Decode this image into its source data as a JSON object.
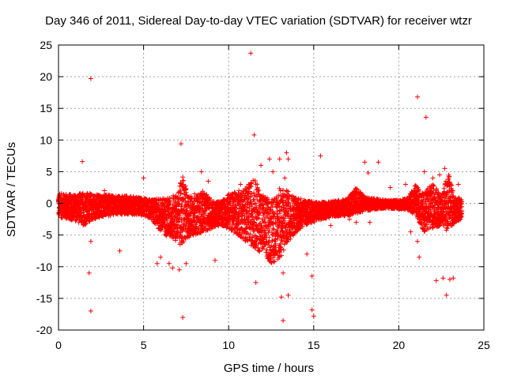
{
  "chart_data": {
    "type": "scatter",
    "title": "Day 346 of 2011, Sidereal Day-to-day VTEC variation (SDTVAR) for receiver wtzr",
    "xlabel": "GPS time / hours",
    "ylabel": "SDTVAR / TECUs",
    "xlim": [
      0,
      25
    ],
    "ylim": [
      -20,
      25
    ],
    "xticks": [
      0,
      5,
      10,
      15,
      20,
      25
    ],
    "yticks": [
      -20,
      -15,
      -10,
      -5,
      0,
      5,
      10,
      15,
      20,
      25
    ],
    "grid": true,
    "marker": "+",
    "color": "#ff0000",
    "series": [
      {
        "name": "SDTVAR",
        "band": [
          [
            0.0,
            -2.2,
            1.6
          ],
          [
            0.5,
            -2.5,
            1.5
          ],
          [
            1.0,
            -2.8,
            1.4
          ],
          [
            1.5,
            -3.5,
            1.8
          ],
          [
            2.0,
            -2.6,
            1.5
          ],
          [
            2.5,
            -2.2,
            1.4
          ],
          [
            3.0,
            -2.0,
            1.3
          ],
          [
            3.5,
            -1.8,
            1.2
          ],
          [
            4.0,
            -1.7,
            1.2
          ],
          [
            4.5,
            -1.8,
            1.1
          ],
          [
            5.0,
            -2.0,
            0.8
          ],
          [
            5.5,
            -2.6,
            0.6
          ],
          [
            6.0,
            -4.5,
            0.8
          ],
          [
            6.5,
            -5.5,
            1.0
          ],
          [
            7.0,
            -6.0,
            1.5
          ],
          [
            7.3,
            -7.0,
            4.5
          ],
          [
            7.6,
            -5.5,
            1.5
          ],
          [
            8.0,
            -5.0,
            1.0
          ],
          [
            8.5,
            -4.5,
            2.0
          ],
          [
            9.0,
            -4.0,
            0.5
          ],
          [
            9.5,
            -3.5,
            0.3
          ],
          [
            10.0,
            -4.0,
            1.5
          ],
          [
            10.5,
            -5.0,
            2.0
          ],
          [
            11.0,
            -6.0,
            2.5
          ],
          [
            11.5,
            -7.0,
            4.0
          ],
          [
            12.0,
            -8.0,
            1.5
          ],
          [
            12.5,
            -9.5,
            0.5
          ],
          [
            13.0,
            -9.0,
            2.5
          ],
          [
            13.5,
            -6.0,
            2.0
          ],
          [
            14.0,
            -4.5,
            1.0
          ],
          [
            14.5,
            -3.5,
            0.5
          ],
          [
            15.0,
            -3.0,
            0.3
          ],
          [
            15.5,
            -2.5,
            0.2
          ],
          [
            16.0,
            -2.2,
            0.3
          ],
          [
            16.5,
            -2.0,
            0.5
          ],
          [
            17.0,
            -2.0,
            0.8
          ],
          [
            17.5,
            -1.6,
            2.5
          ],
          [
            18.0,
            -1.2,
            1.0
          ],
          [
            18.5,
            -1.0,
            0.8
          ],
          [
            19.0,
            -0.8,
            0.6
          ],
          [
            19.5,
            -0.8,
            0.5
          ],
          [
            20.0,
            -0.9,
            0.5
          ],
          [
            20.5,
            -1.0,
            0.8
          ],
          [
            21.0,
            -2.0,
            3.0
          ],
          [
            21.5,
            -4.5,
            1.5
          ],
          [
            22.0,
            -4.0,
            3.5
          ],
          [
            22.5,
            -3.5,
            1.0
          ],
          [
            22.9,
            -4.5,
            5.0
          ],
          [
            23.3,
            -3.0,
            1.0
          ],
          [
            23.7,
            -2.5,
            0.8
          ]
        ],
        "outliers": [
          [
            1.4,
            6.6
          ],
          [
            1.9,
            19.7
          ],
          [
            1.8,
            -11.0
          ],
          [
            1.9,
            -17.0
          ],
          [
            1.9,
            -6.0
          ],
          [
            2.7,
            2.0
          ],
          [
            3.6,
            -7.5
          ],
          [
            5.0,
            4.0
          ],
          [
            5.8,
            -9.5
          ],
          [
            6.0,
            -8.5
          ],
          [
            6.5,
            -9.5
          ],
          [
            6.7,
            -10.2
          ],
          [
            7.2,
            9.4
          ],
          [
            7.3,
            -18.0
          ],
          [
            7.1,
            -10.5
          ],
          [
            7.5,
            -9.5
          ],
          [
            8.4,
            5.0
          ],
          [
            8.0,
            1.5
          ],
          [
            8.8,
            3.5
          ],
          [
            9.2,
            -9.0
          ],
          [
            10.7,
            3.0
          ],
          [
            11.3,
            23.7
          ],
          [
            11.5,
            10.8
          ],
          [
            11.6,
            -12.5
          ],
          [
            11.9,
            6.0
          ],
          [
            12.4,
            7.0
          ],
          [
            12.6,
            5.0
          ],
          [
            13.0,
            7.0
          ],
          [
            13.3,
            4.0
          ],
          [
            13.4,
            8.0
          ],
          [
            13.5,
            7.0
          ],
          [
            13.1,
            -14.8
          ],
          [
            13.2,
            -18.5
          ],
          [
            13.5,
            -14.5
          ],
          [
            13.2,
            -11.0
          ],
          [
            14.6,
            -8.0
          ],
          [
            14.9,
            -11.5
          ],
          [
            14.9,
            -16.8
          ],
          [
            15.0,
            -17.8
          ],
          [
            15.4,
            7.5
          ],
          [
            16.0,
            -3.5
          ],
          [
            17.1,
            -2.5
          ],
          [
            17.5,
            -3.0
          ],
          [
            18.0,
            6.5
          ],
          [
            18.2,
            4.8
          ],
          [
            18.3,
            -3.0
          ],
          [
            18.8,
            6.5
          ],
          [
            19.5,
            2.5
          ],
          [
            20.4,
            3.0
          ],
          [
            20.7,
            -4.5
          ],
          [
            21.1,
            16.8
          ],
          [
            21.6,
            13.6
          ],
          [
            21.2,
            -8.5
          ],
          [
            21.1,
            -6.0
          ],
          [
            21.5,
            5.0
          ],
          [
            22.0,
            4.0
          ],
          [
            22.2,
            -12.2
          ],
          [
            22.4,
            4.5
          ],
          [
            22.6,
            -11.8
          ],
          [
            22.7,
            5.5
          ],
          [
            22.8,
            -14.5
          ],
          [
            23.0,
            -12.0
          ],
          [
            23.2,
            -11.8
          ],
          [
            23.5,
            3.0
          ]
        ]
      }
    ]
  }
}
